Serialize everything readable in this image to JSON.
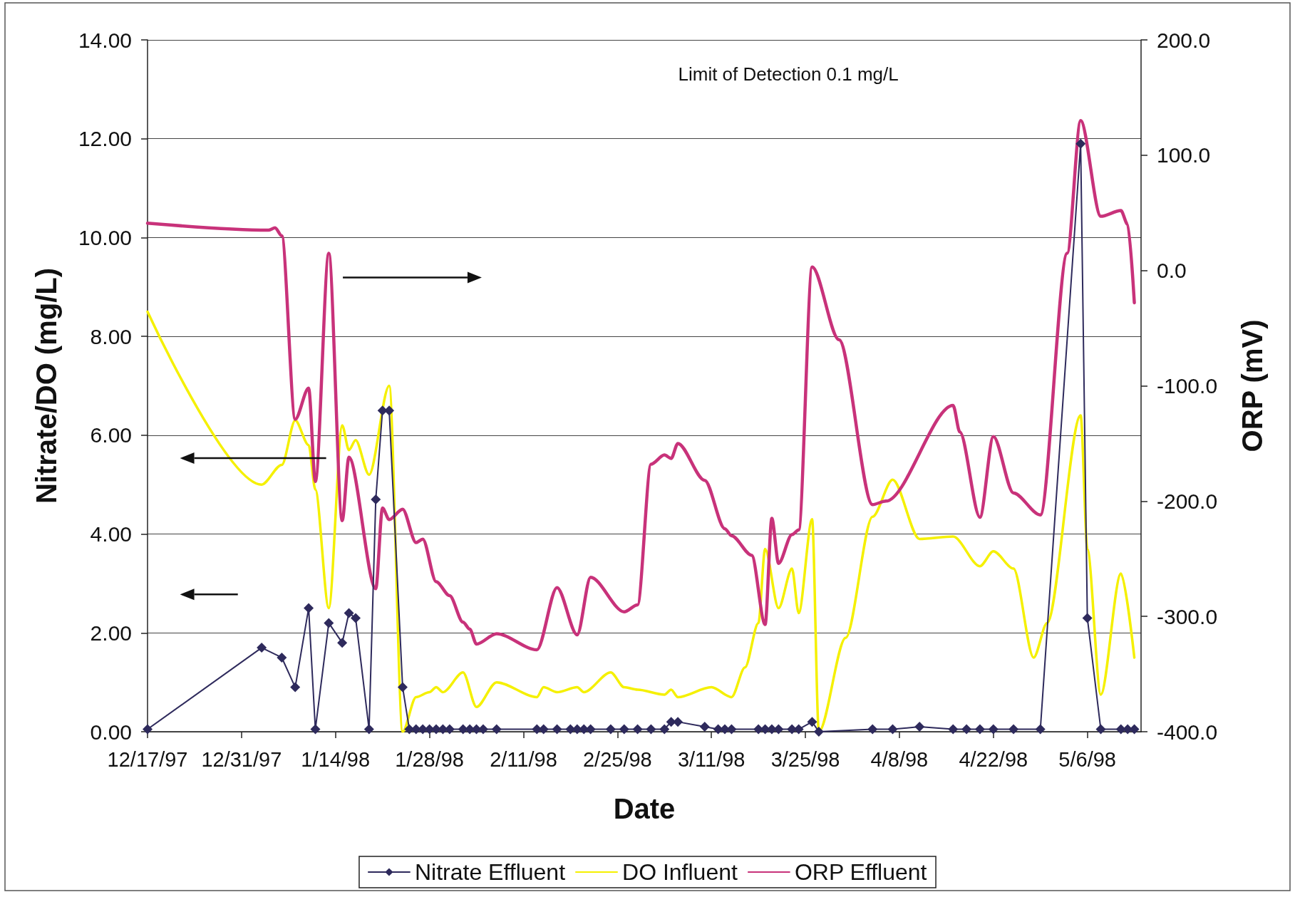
{
  "chart_data": {
    "type": "line",
    "xlabel": "Date",
    "ylabel": "Nitrate/DO (mg/L)",
    "y2label": "ORP (mV)",
    "annotations": [
      "Limit of Detection 0.1 mg/L"
    ],
    "xlim": [
      "1997-12-17",
      "1998-05-14"
    ],
    "xticks": [
      {
        "value": "1997-12-17",
        "label": "12/17/97"
      },
      {
        "value": "1997-12-31",
        "label": "12/31/97"
      },
      {
        "value": "1998-01-14",
        "label": "1/14/98"
      },
      {
        "value": "1998-01-28",
        "label": "1/28/98"
      },
      {
        "value": "1998-02-11",
        "label": "2/11/98"
      },
      {
        "value": "1998-02-25",
        "label": "2/25/98"
      },
      {
        "value": "1998-03-11",
        "label": "3/11/98"
      },
      {
        "value": "1998-03-25",
        "label": "3/25/98"
      },
      {
        "value": "1998-04-08",
        "label": "4/8/98"
      },
      {
        "value": "1998-04-22",
        "label": "4/22/98"
      },
      {
        "value": "1998-05-06",
        "label": "5/6/98"
      }
    ],
    "ylim": [
      0,
      14
    ],
    "yticks": [
      {
        "value": 0,
        "label": "0.00"
      },
      {
        "value": 2,
        "label": "2.00"
      },
      {
        "value": 4,
        "label": "4.00"
      },
      {
        "value": 6,
        "label": "6.00"
      },
      {
        "value": 8,
        "label": "8.00"
      },
      {
        "value": 10,
        "label": "10.00"
      },
      {
        "value": 12,
        "label": "12.00"
      },
      {
        "value": 14,
        "label": "14.00"
      }
    ],
    "y2lim": [
      -400,
      200
    ],
    "y2ticks": [
      {
        "value": -400,
        "label": "-400.0"
      },
      {
        "value": -300,
        "label": "-300.0"
      },
      {
        "value": -200,
        "label": "-200.0"
      },
      {
        "value": -100,
        "label": "-100.0"
      },
      {
        "value": 0,
        "label": "0.0"
      },
      {
        "value": 100,
        "label": "100.0"
      },
      {
        "value": 200,
        "label": "200.0"
      }
    ],
    "grid": "y",
    "legend": "bottom",
    "series": [
      {
        "name": "Nitrate Effluent",
        "color": "#2e2a5c",
        "marker": "diamond",
        "x": [
          "1997-12-17",
          "1998-01-03",
          "1998-01-06",
          "1998-01-08",
          "1998-01-10",
          "1998-01-11",
          "1998-01-13",
          "1998-01-15",
          "1998-01-16",
          "1998-01-17",
          "1998-01-19",
          "1998-01-20",
          "1998-01-21",
          "1998-01-22",
          "1998-01-24",
          "1998-01-25",
          "1998-01-26",
          "1998-01-27",
          "1998-01-28",
          "1998-01-29",
          "1998-01-30",
          "1998-01-31",
          "1998-02-02",
          "1998-02-03",
          "1998-02-04",
          "1998-02-05",
          "1998-02-07",
          "1998-02-13",
          "1998-02-14",
          "1998-02-16",
          "1998-02-18",
          "1998-02-19",
          "1998-02-20",
          "1998-02-21",
          "1998-02-24",
          "1998-02-26",
          "1998-02-28",
          "1998-03-02",
          "1998-03-04",
          "1998-03-05",
          "1998-03-06",
          "1998-03-10",
          "1998-03-12",
          "1998-03-13",
          "1998-03-14",
          "1998-03-18",
          "1998-03-19",
          "1998-03-20",
          "1998-03-21",
          "1998-03-23",
          "1998-03-24",
          "1998-03-26",
          "1998-03-27",
          "1998-04-04",
          "1998-04-07",
          "1998-04-11",
          "1998-04-16",
          "1998-04-18",
          "1998-04-20",
          "1998-04-22",
          "1998-04-25",
          "1998-04-29",
          "1998-05-05",
          "1998-05-06",
          "1998-05-08",
          "1998-05-11",
          "1998-05-12",
          "1998-05-13"
        ],
        "values": [
          0.05,
          1.7,
          1.5,
          0.9,
          2.5,
          0.05,
          2.2,
          1.8,
          2.4,
          2.3,
          0.05,
          4.7,
          6.5,
          6.5,
          0.9,
          0.05,
          0.05,
          0.05,
          0.05,
          0.05,
          0.05,
          0.05,
          0.05,
          0.05,
          0.05,
          0.05,
          0.05,
          0.05,
          0.05,
          0.05,
          0.05,
          0.05,
          0.05,
          0.05,
          0.05,
          0.05,
          0.05,
          0.05,
          0.05,
          0.2,
          0.2,
          0.1,
          0.05,
          0.05,
          0.05,
          0.05,
          0.05,
          0.05,
          0.05,
          0.05,
          0.05,
          0.2,
          0,
          0.05,
          0.05,
          0.1,
          0.05,
          0.05,
          0.05,
          0.05,
          0.05,
          0.05,
          11.9,
          2.3,
          0.05,
          0.05,
          0.05,
          0.05
        ]
      },
      {
        "name": "DO Influent",
        "color": "#f5f000",
        "x": [
          "1997-12-17",
          "1998-01-03",
          "1998-01-06",
          "1998-01-08",
          "1998-01-10",
          "1998-01-11",
          "1998-01-13",
          "1998-01-15",
          "1998-01-16",
          "1998-01-17",
          "1998-01-19",
          "1998-01-22",
          "1998-01-24",
          "1998-01-26",
          "1998-01-28",
          "1998-01-29",
          "1998-01-30",
          "1998-02-02",
          "1998-02-04",
          "1998-02-07",
          "1998-02-13",
          "1998-02-14",
          "1998-02-16",
          "1998-02-19",
          "1998-02-20",
          "1998-02-24",
          "1998-02-26",
          "1998-02-28",
          "1998-03-04",
          "1998-03-05",
          "1998-03-06",
          "1998-03-11",
          "1998-03-14",
          "1998-03-16",
          "1998-03-18",
          "1998-03-19",
          "1998-03-21",
          "1998-03-23",
          "1998-03-24",
          "1998-03-26",
          "1998-03-27",
          "1998-03-31",
          "1998-04-04",
          "1998-04-07",
          "1998-04-11",
          "1998-04-16",
          "1998-04-20",
          "1998-04-22",
          "1998-04-25",
          "1998-04-28",
          "1998-04-30",
          "1998-05-05",
          "1998-05-06",
          "1998-05-08",
          "1998-05-11",
          "1998-05-13"
        ],
        "values": [
          8.5,
          5.0,
          5.4,
          6.3,
          5.8,
          4.9,
          2.5,
          6.2,
          5.7,
          5.9,
          5.2,
          7.0,
          0,
          0.7,
          0.8,
          0.9,
          0.8,
          1.2,
          0.5,
          1.0,
          0.7,
          0.9,
          0.8,
          0.9,
          0.8,
          1.2,
          0.9,
          0.85,
          0.75,
          0.85,
          0.7,
          0.9,
          0.7,
          1.3,
          2.2,
          3.7,
          2.5,
          3.3,
          2.4,
          4.3,
          0,
          1.9,
          4.35,
          5.1,
          3.9,
          3.95,
          3.35,
          3.65,
          3.3,
          1.5,
          2.2,
          6.4,
          3.7,
          0.75,
          3.2,
          1.5
        ]
      },
      {
        "name": "ORP Effluent",
        "color": "#c8327a",
        "axis": "y2",
        "x": [
          "1997-12-17",
          "1998-01-04",
          "1998-01-05",
          "1998-01-06",
          "1998-01-08",
          "1998-01-10",
          "1998-01-11",
          "1998-01-13",
          "1998-01-15",
          "1998-01-16",
          "1998-01-20",
          "1998-01-21",
          "1998-01-22",
          "1998-01-24",
          "1998-01-26",
          "1998-01-27",
          "1998-01-29",
          "1998-01-31",
          "1998-02-02",
          "1998-02-03",
          "1998-02-04",
          "1998-02-07",
          "1998-02-13",
          "1998-02-16",
          "1998-02-19",
          "1998-02-21",
          "1998-02-26",
          "1998-02-28",
          "1998-03-02",
          "1998-03-04",
          "1998-03-05",
          "1998-03-06",
          "1998-03-10",
          "1998-03-13",
          "1998-03-14",
          "1998-03-17",
          "1998-03-19",
          "1998-03-20",
          "1998-03-21",
          "1998-03-23",
          "1998-03-24",
          "1998-03-26",
          "1998-03-30",
          "1998-04-04",
          "1998-04-06",
          "1998-04-16",
          "1998-04-17",
          "1998-04-20",
          "1998-04-22",
          "1998-04-25",
          "1998-04-29",
          "1998-05-03",
          "1998-05-05",
          "1998-05-08",
          "1998-05-11",
          "1998-05-12",
          "1998-05-13"
        ],
        "values": [
          41,
          35,
          37,
          30,
          -129,
          -102,
          -183,
          15,
          -217,
          -162,
          -276,
          -206,
          -216,
          -207,
          -236,
          -233,
          -270,
          -282,
          -305,
          -311,
          -324,
          -315,
          -329,
          -275,
          -316,
          -266,
          -296,
          -290,
          -168,
          -160,
          -163,
          -150,
          -182,
          -224,
          -230,
          -247,
          -307,
          -215,
          -254,
          -229,
          -225,
          3,
          -60,
          -203,
          -200,
          -117,
          -140,
          -214,
          -144,
          -193,
          -212,
          15,
          130,
          47,
          52,
          40,
          -28
        ]
      }
    ]
  }
}
